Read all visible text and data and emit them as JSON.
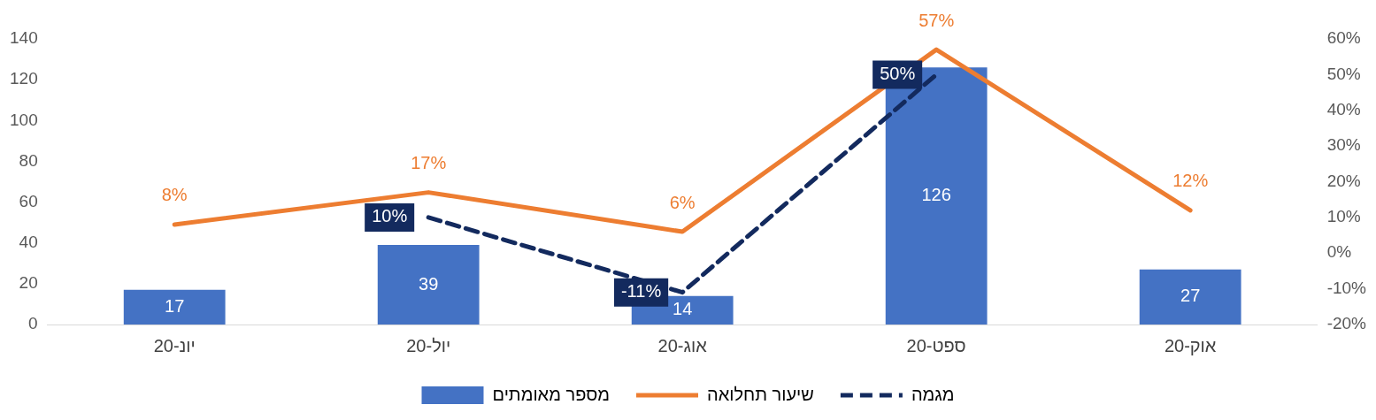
{
  "chart_data": {
    "type": "bar",
    "categories": [
      "יונ-20",
      "יול-20",
      "אוג-20",
      "ספט-20",
      "אוק-20"
    ],
    "series": [
      {
        "name": "מספר מאומתים",
        "color": "#4472c4",
        "values": [
          17,
          39,
          14,
          126,
          27
        ],
        "value_labels": [
          "17",
          "39",
          "14",
          "126",
          "27"
        ]
      },
      {
        "name": "שיעור תחלואה",
        "type": "line",
        "axis": "y2",
        "color": "#ed7d31",
        "values": [
          8,
          17,
          6,
          57,
          12
        ],
        "value_labels": [
          "8%",
          "17%",
          "6%",
          "57%",
          "12%"
        ]
      },
      {
        "name": "מגמה",
        "type": "line",
        "axis": "y2",
        "color": "#132a5e",
        "line_style": "dashed",
        "values": [
          null,
          10,
          -11,
          50,
          null
        ],
        "value_labels": [
          null,
          "10%",
          "-11%",
          "50%",
          null
        ]
      }
    ],
    "ylim": [
      0,
      140
    ],
    "yticks": [
      0,
      20,
      40,
      60,
      80,
      100,
      120,
      140
    ],
    "y2lim": [
      -20,
      60
    ],
    "y2ticks": [
      {
        "value": -20,
        "label": "-20%"
      },
      {
        "value": -10,
        "label": "-10%"
      },
      {
        "value": 0,
        "label": "0%"
      },
      {
        "value": 10,
        "label": "10%"
      },
      {
        "value": 20,
        "label": "20%"
      },
      {
        "value": 30,
        "label": "30%"
      },
      {
        "value": 40,
        "label": "40%"
      },
      {
        "value": 50,
        "label": "50%"
      },
      {
        "value": 60,
        "label": "60%"
      }
    ],
    "legend": "bottom"
  }
}
